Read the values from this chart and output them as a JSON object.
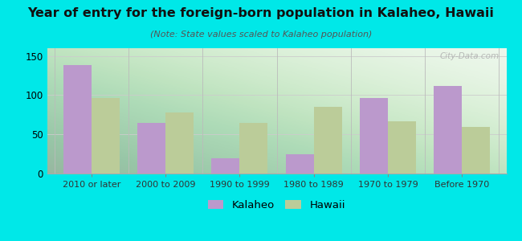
{
  "title": "Year of entry for the foreign-born population in Kalaheo, Hawaii",
  "subtitle": "(Note: State values scaled to Kalaheo population)",
  "categories": [
    "2010 or later",
    "2000 to 2009",
    "1990 to 1999",
    "1980 to 1989",
    "1970 to 1979",
    "Before 1970"
  ],
  "kalaheo_values": [
    138,
    65,
    20,
    25,
    96,
    112
  ],
  "hawaii_values": [
    96,
    78,
    65,
    85,
    67,
    59
  ],
  "kalaheo_color": "#bb99cc",
  "hawaii_color": "#bbcc99",
  "background_color": "#00e8e8",
  "ylim": [
    0,
    160
  ],
  "yticks": [
    0,
    50,
    100,
    150
  ],
  "bar_width": 0.38,
  "legend_labels": [
    "Kalaheo",
    "Hawaii"
  ],
  "watermark": "City-Data.com"
}
